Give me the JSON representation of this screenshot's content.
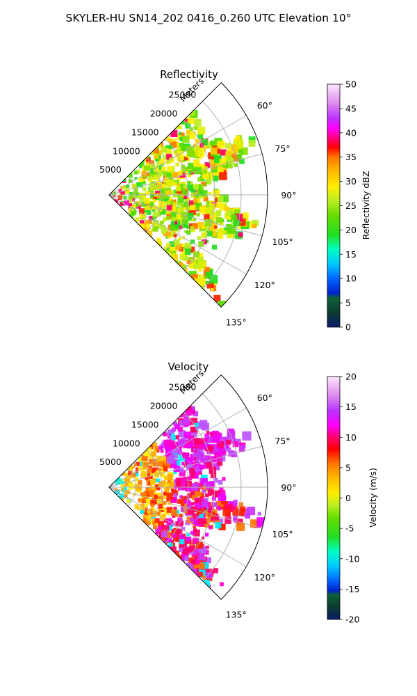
{
  "figure": {
    "title": "SKYLER-HU  SN14_202  0416_0.260 UTC Elevation 10°"
  },
  "chart_data": [
    {
      "type": "heatmap",
      "title": "Reflectivity",
      "radial_axis_label": "Meters",
      "radial_ticks": [
        5000,
        10000,
        15000,
        20000,
        25000
      ],
      "radial_range": [
        0,
        30000
      ],
      "azimuth_ticks": [
        60,
        75,
        90,
        105,
        120,
        135
      ],
      "azimuth_range": [
        45,
        135
      ],
      "colorbar": {
        "label": "Reflectivity dBZ",
        "min": 0,
        "max": 50,
        "ticks": [
          0,
          5,
          10,
          15,
          20,
          25,
          30,
          35,
          40,
          45,
          50
        ]
      },
      "grid": true
    },
    {
      "type": "heatmap",
      "title": "Velocity",
      "radial_axis_label": "Meters",
      "radial_ticks": [
        5000,
        10000,
        15000,
        20000,
        25000
      ],
      "radial_range": [
        0,
        30000
      ],
      "azimuth_ticks": [
        60,
        75,
        90,
        105,
        120,
        135
      ],
      "azimuth_range": [
        45,
        135
      ],
      "colorbar": {
        "label": "Velocity (m/s)",
        "min": -20,
        "max": 20,
        "ticks": [
          -20,
          -15,
          -10,
          -5,
          0,
          5,
          10,
          15,
          20
        ]
      },
      "grid": true
    }
  ]
}
